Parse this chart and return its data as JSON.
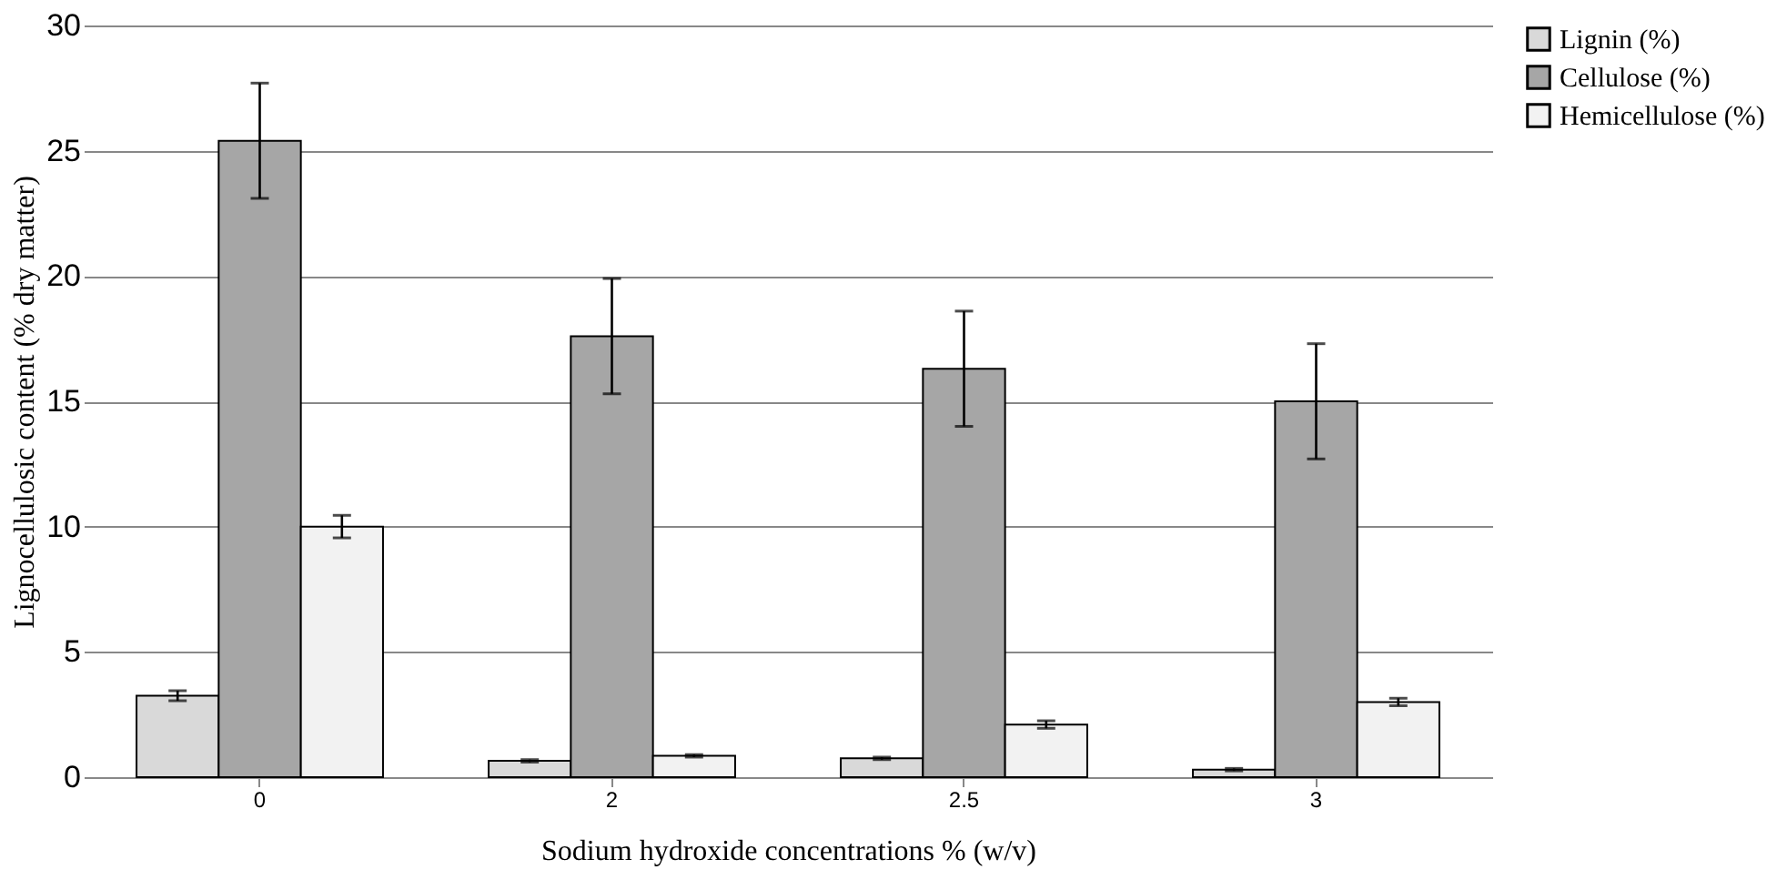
{
  "chart_data": {
    "type": "bar",
    "xlabel": "Sodium hydroxide concentrations % (w/v)",
    "ylabel": "Lignocellulosic content (% dry matter)",
    "categories": [
      "0",
      "2",
      "2.5",
      "3"
    ],
    "series": [
      {
        "name": "Lignin (%)",
        "color": "#d9d9d9",
        "values": [
          3.25,
          0.65,
          0.75,
          0.3
        ],
        "errors": [
          0.2,
          0.05,
          0.05,
          0.05
        ]
      },
      {
        "name": "Cellulose (%)",
        "color": "#a6a6a6",
        "values": [
          25.4,
          17.6,
          16.3,
          15.0
        ],
        "errors": [
          2.3,
          2.3,
          2.3,
          2.3
        ]
      },
      {
        "name": "Hemicellulose (%)",
        "color": "#f2f2f2",
        "values": [
          10.0,
          0.85,
          2.1,
          3.0
        ],
        "errors": [
          0.45,
          0.05,
          0.15,
          0.15
        ]
      }
    ],
    "ylim": [
      0,
      30
    ],
    "yticks": [
      0,
      5,
      10,
      15,
      20,
      25,
      30
    ],
    "grid": "y",
    "legend": "right"
  }
}
